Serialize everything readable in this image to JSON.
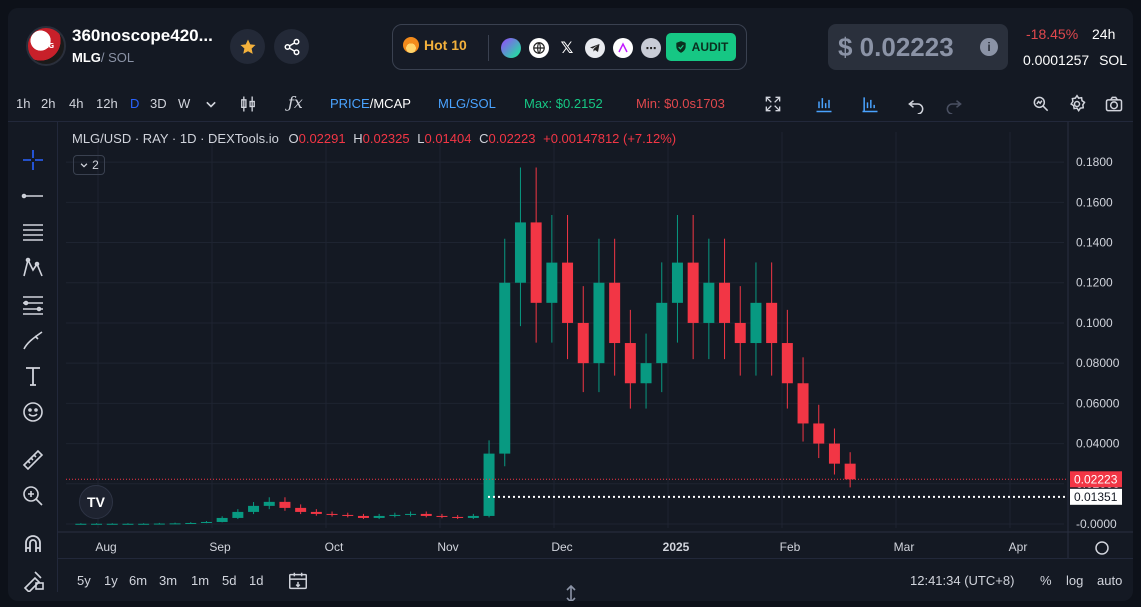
{
  "header": {
    "token_name": "360noscope420...",
    "token_symbol": "MLG",
    "token_quote": "/ SOL",
    "avatar_label": "MLG",
    "hot_label": "Hot 10",
    "audit_label": "AUDIT",
    "price": "$ 0.02223",
    "change": "-18.45%",
    "period": "24h",
    "sol_price": "0.0001257",
    "sol_label": "SOL",
    "icons": [
      "star-icon",
      "share-icon",
      "flame-icon",
      "solana-icon",
      "globe-icon",
      "x-icon",
      "telegram-icon",
      "linktree-icon",
      "more-icon",
      "shield-check-icon",
      "info-icon"
    ]
  },
  "toolbar": {
    "intervals": [
      "1h",
      "2h",
      "4h",
      "12h",
      "D",
      "3D",
      "W"
    ],
    "active_interval": "D",
    "price_label": "PRICE",
    "mcap_label": "/MCAP",
    "pair_label": "MLG/SOL",
    "max_label": "Max: $0.2152",
    "min_label": "Min: $0.0s1703",
    "colors": {
      "accent": "#2962ff",
      "max": "#089981",
      "min": "#f23645"
    }
  },
  "legend": {
    "title": "MLG/USD · RAY · 1D · DEXTools.io",
    "o_label": "O",
    "o_value": "0.02291",
    "h_label": "H",
    "h_value": "0.02325",
    "l_label": "L",
    "l_value": "0.01404",
    "c_label": "C",
    "c_value": "0.02223",
    "change": "+0.00147812 (+7.12%)",
    "collapse_count": "2"
  },
  "chart_data": {
    "type": "candlestick",
    "x_ticks": [
      "Aug",
      "Sep",
      "Oct",
      "Nov",
      "Dec",
      "2025",
      "Feb",
      "Mar",
      "Apr"
    ],
    "y_ticks": [
      "0.1800",
      "0.1600",
      "0.1400",
      "0.1200",
      "0.1000",
      "0.08000",
      "0.06000",
      "0.04000",
      "0.02000",
      "-0.0000"
    ],
    "ylim": [
      -0.002,
      0.19
    ],
    "last_price_label": "0.02223",
    "line_price_label": "0.01351",
    "last_price": 0.02223,
    "line_price": 0.01351,
    "up_color": "#089981",
    "down_color": "#f23645",
    "grid": true,
    "closes": [
      0.0001,
      0.0001,
      0.0001,
      0.0001,
      0.0001,
      0.0002,
      0.0003,
      0.0005,
      0.001,
      0.003,
      0.006,
      0.009,
      0.011,
      0.008,
      0.006,
      0.005,
      0.0045,
      0.004,
      0.003,
      0.004,
      0.0045,
      0.005,
      0.004,
      0.0035,
      0.003,
      0.004,
      0.035,
      0.12,
      0.15,
      0.11,
      0.13,
      0.1,
      0.08,
      0.12,
      0.09,
      0.07,
      0.08,
      0.11,
      0.13,
      0.1,
      0.12,
      0.1,
      0.09,
      0.11,
      0.09,
      0.07,
      0.05,
      0.04,
      0.03,
      0.0222
    ]
  },
  "bottom": {
    "ranges": [
      "5y",
      "1y",
      "6m",
      "3m",
      "1m",
      "5d",
      "1d"
    ],
    "time": "12:41:34 (UTC+8)",
    "percent": "%",
    "log": "log",
    "auto": "auto"
  }
}
